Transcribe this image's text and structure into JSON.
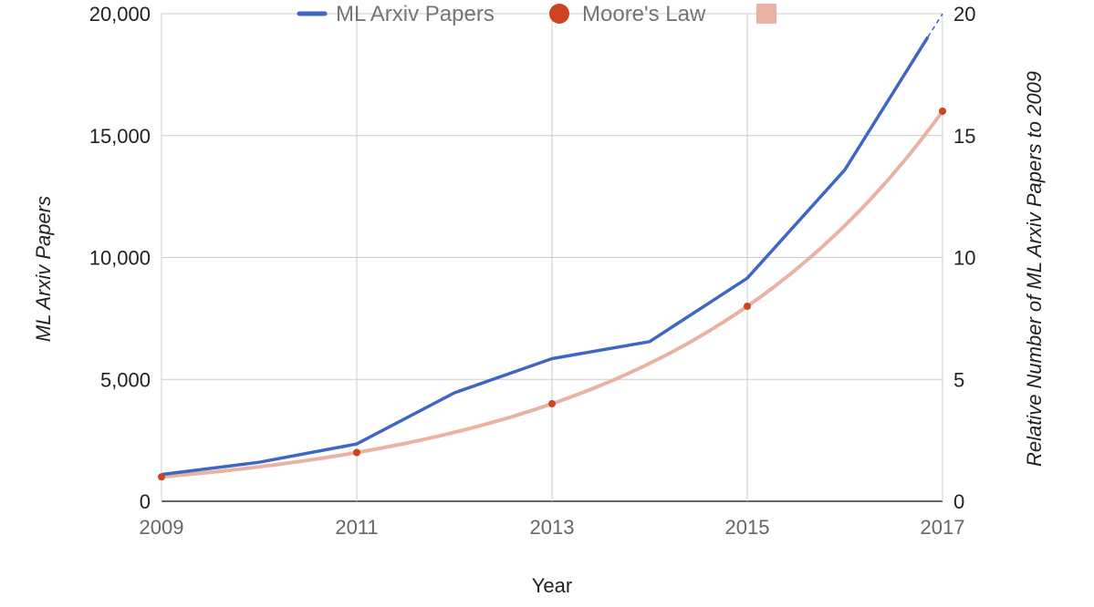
{
  "chart_data": {
    "type": "line",
    "xlabel": "Year",
    "ylabel_left": "ML Arxiv Papers",
    "ylabel_right": "Relative Number of ML Arxiv Papers  to 2009",
    "x": [
      2009,
      2010,
      2011,
      2012,
      2013,
      2014,
      2015,
      2016,
      2017
    ],
    "x_tick_labels": [
      "2009",
      "2011",
      "2013",
      "2015",
      "2017"
    ],
    "x_ticks": [
      2009,
      2011,
      2013,
      2015,
      2017
    ],
    "xlim": [
      2009,
      2017
    ],
    "ylim_left": [
      0,
      20000
    ],
    "y_ticks_left": [
      0,
      5000,
      10000,
      15000,
      20000
    ],
    "y_tick_labels_left": [
      "0",
      "5,000",
      "10,000",
      "15,000",
      "20,000"
    ],
    "ylim_right": [
      0,
      20
    ],
    "y_ticks_right": [
      0,
      5,
      10,
      15,
      20
    ],
    "y_tick_labels_right": [
      "0",
      "5",
      "10",
      "15",
      "20"
    ],
    "grid": true,
    "legend_position": "top-center",
    "series": [
      {
        "name": "ML Arxiv Papers",
        "axis": "left",
        "color": "#3e66c4",
        "style": "line",
        "x": [
          2009,
          2010,
          2011,
          2012,
          2013,
          2014,
          2015,
          2016,
          2017
        ],
        "values": [
          1100,
          1600,
          2350,
          4450,
          5850,
          6550,
          9150,
          13600,
          20000
        ],
        "dashed_from_x": 2016.85
      },
      {
        "name": "Moore's Law",
        "axis": "right",
        "color": "#cc4420",
        "style": "points",
        "x": [
          2009,
          2011,
          2013,
          2015,
          2017
        ],
        "values": [
          1,
          2,
          4,
          8,
          16
        ]
      },
      {
        "name": "",
        "axis": "right",
        "color": "#e9b3a4",
        "style": "curve",
        "x_range": [
          2009,
          2017
        ],
        "formula": "2^((x-2009)/2)"
      }
    ]
  }
}
